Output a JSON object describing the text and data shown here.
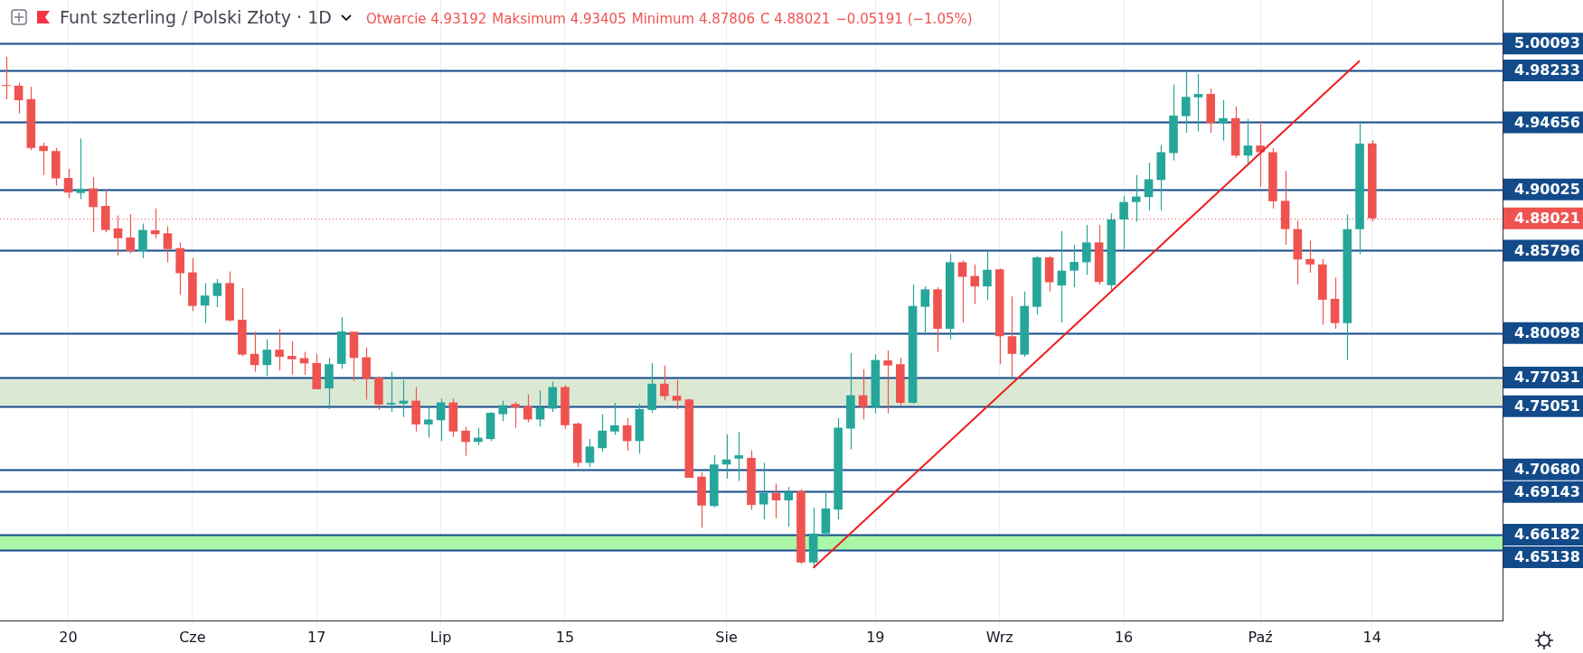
{
  "chart_data": {
    "type": "candlestick",
    "title": "Funt szterling / Polski Złoty · 1D",
    "annotations": [
      "Otwarcie 4.93192",
      "Maksimum 4.93405",
      "Minimum 4.87806",
      "C 4.88021",
      "−0.05191 (−1.05%)"
    ],
    "categories": [
      null,
      null,
      null,
      null,
      null,
      "20",
      null,
      null,
      null,
      null,
      null,
      null,
      null,
      null,
      null,
      "Cze",
      null,
      null,
      null,
      null,
      null,
      null,
      null,
      null,
      null,
      "17",
      null,
      null,
      null,
      null,
      null,
      null,
      null,
      null,
      null,
      "Lip",
      null,
      null,
      null,
      null,
      null,
      null,
      null,
      null,
      null,
      "15",
      null,
      null,
      null,
      null,
      null,
      null,
      null,
      null,
      null,
      null,
      null,
      null,
      "Sie",
      null,
      null,
      null,
      null,
      null,
      null,
      null,
      null,
      null,
      null,
      null,
      "19",
      null,
      null,
      null,
      null,
      null,
      null,
      null,
      null,
      null,
      "Wrz",
      null,
      null,
      null,
      null,
      null,
      null,
      null,
      null,
      null,
      "16",
      null,
      null,
      null,
      null,
      null,
      null,
      null,
      null,
      null,
      null,
      "Paź",
      null,
      null,
      null,
      null,
      null,
      null,
      null,
      null,
      "14",
      null,
      null,
      null,
      null,
      null,
      null,
      null,
      null,
      null,
      null
    ],
    "ylim": [
      4.602,
      5.031
    ],
    "series": [
      {
        "type": "candlestick",
        "ohlc": [
          [
            4.9722,
            4.9919,
            4.9624,
            4.9716
          ],
          [
            4.9718,
            4.9738,
            4.9526,
            4.9618
          ],
          [
            4.9626,
            4.971,
            4.9273,
            4.9288
          ],
          [
            4.9302,
            4.9325,
            4.9101,
            4.9267
          ],
          [
            4.9267,
            4.9288,
            4.9029,
            4.9078
          ],
          [
            4.9081,
            4.9144,
            4.8943,
            4.898
          ],
          [
            4.8977,
            4.9354,
            4.8935,
            4.9006
          ],
          [
            4.9009,
            4.9087,
            4.8705,
            4.888
          ],
          [
            4.8888,
            4.8998,
            4.8705,
            4.8722
          ],
          [
            4.8733,
            4.8822,
            4.8544,
            4.8665
          ],
          [
            4.867,
            4.8831,
            4.8561,
            4.8576
          ],
          [
            4.8576,
            4.8766,
            4.8527,
            4.8722
          ],
          [
            4.8719,
            4.8871,
            4.8665,
            4.8693
          ],
          [
            4.8699,
            4.8748,
            4.8499,
            4.859
          ],
          [
            4.8596,
            4.8636,
            4.8274,
            4.8423
          ],
          [
            4.8429,
            4.8527,
            4.8162,
            4.8197
          ],
          [
            4.82,
            4.8355,
            4.8079,
            4.8269
          ],
          [
            4.8266,
            4.8383,
            4.8189,
            4.8355
          ],
          [
            4.8355,
            4.8435,
            4.8091,
            4.8097
          ],
          [
            4.8102,
            4.832,
            4.7849,
            4.7861
          ],
          [
            4.7866,
            4.8019,
            4.7743,
            4.7789
          ],
          [
            4.7789,
            4.7967,
            4.7715,
            4.7895
          ],
          [
            4.7895,
            4.8039,
            4.7752,
            4.7846
          ],
          [
            4.7852,
            4.7953,
            4.7723,
            4.7829
          ],
          [
            4.7837,
            4.7881,
            4.7723,
            4.78
          ],
          [
            4.7803,
            4.7866,
            4.7622,
            4.7622
          ],
          [
            4.7628,
            4.7838,
            4.7485,
            4.7795
          ],
          [
            4.7797,
            4.8119,
            4.7763,
            4.8021
          ],
          [
            4.8019,
            4.8019,
            4.768,
            4.7838
          ],
          [
            4.7843,
            4.791,
            4.7551,
            4.7694
          ],
          [
            4.7703,
            4.7709,
            4.7479,
            4.7517
          ],
          [
            4.7517,
            4.7743,
            4.7465,
            4.7528
          ],
          [
            4.7523,
            4.7686,
            4.743,
            4.7543
          ],
          [
            4.7543,
            4.7637,
            4.733,
            4.7379
          ],
          [
            4.7379,
            4.7505,
            4.7287,
            4.7413
          ],
          [
            4.7408,
            4.7557,
            4.7264,
            4.7531
          ],
          [
            4.7531,
            4.7557,
            4.7293,
            4.733
          ],
          [
            4.7336,
            4.7364,
            4.7163,
            4.7258
          ],
          [
            4.7258,
            4.7356,
            4.7235,
            4.7287
          ],
          [
            4.7278,
            4.7465,
            4.7264,
            4.7459
          ],
          [
            4.745,
            4.7543,
            4.7402,
            4.7511
          ],
          [
            4.752,
            4.7534,
            4.7356,
            4.7497
          ],
          [
            4.7505,
            4.7586,
            4.7393,
            4.7413
          ],
          [
            4.7413,
            4.7614,
            4.7364,
            4.7497
          ],
          [
            4.7488,
            4.7674,
            4.7465,
            4.7637
          ],
          [
            4.7637,
            4.7651,
            4.735,
            4.7373
          ],
          [
            4.7385,
            4.7393,
            4.7085,
            4.7114
          ],
          [
            4.7114,
            4.7278,
            4.7085,
            4.7226
          ],
          [
            4.7215,
            4.745,
            4.7192,
            4.7336
          ],
          [
            4.733,
            4.7528,
            4.7307,
            4.7373
          ],
          [
            4.7373,
            4.7422,
            4.7198,
            4.7264
          ],
          [
            4.7264,
            4.7523,
            4.7177,
            4.7485
          ],
          [
            4.7479,
            4.7803,
            4.7459,
            4.766
          ],
          [
            4.766,
            4.7786,
            4.7545,
            4.7574
          ],
          [
            4.7577,
            4.7686,
            4.7485,
            4.7543
          ],
          [
            4.7551,
            4.7557,
            4.7011,
            4.7011
          ],
          [
            4.7019,
            4.7048,
            4.6666,
            4.6818
          ],
          [
            4.6815,
            4.7166,
            4.6806,
            4.7103
          ],
          [
            4.7103,
            4.731,
            4.7005,
            4.7137
          ],
          [
            4.7143,
            4.7327,
            4.6988,
            4.7166
          ],
          [
            4.7148,
            4.7201,
            4.6789,
            4.6824
          ],
          [
            4.6827,
            4.7114,
            4.6723,
            4.6904
          ],
          [
            4.6904,
            4.697,
            4.6732,
            4.6855
          ],
          [
            4.6855,
            4.6947,
            4.6674,
            4.6913
          ],
          [
            4.6919,
            4.6933,
            4.6416,
            4.6425
          ],
          [
            4.6425,
            4.6804,
            4.6388,
            4.6626
          ],
          [
            4.6626,
            4.6924,
            4.6603,
            4.6798
          ],
          [
            4.679,
            4.7422,
            4.6723,
            4.7356
          ],
          [
            4.735,
            4.7873,
            4.7206,
            4.758
          ],
          [
            4.758,
            4.7761,
            4.7413,
            4.7499
          ],
          [
            4.7499,
            4.7862,
            4.7456,
            4.7824
          ],
          [
            4.7821,
            4.789,
            4.7456,
            4.7786
          ],
          [
            4.7795,
            4.7838,
            4.7508,
            4.7528
          ],
          [
            4.7528,
            4.8346,
            4.7522,
            4.8197
          ],
          [
            4.8191,
            4.8332,
            4.7996,
            4.8312
          ],
          [
            4.8312,
            4.8326,
            4.7881,
            4.8039
          ],
          [
            4.8039,
            4.8556,
            4.7967,
            4.8499
          ],
          [
            4.8499,
            4.8513,
            4.8082,
            4.8398
          ],
          [
            4.8404,
            4.8484,
            4.8211,
            4.8332
          ],
          [
            4.8332,
            4.8576,
            4.824,
            4.8447
          ],
          [
            4.845,
            4.8456,
            4.7795,
            4.7988
          ],
          [
            4.7988,
            4.8263,
            4.7709,
            4.7866
          ],
          [
            4.7861,
            4.8297,
            4.7846,
            4.8197
          ],
          [
            4.8191,
            4.8542,
            4.8139,
            4.8533
          ],
          [
            4.8533,
            4.8542,
            4.8297,
            4.8361
          ],
          [
            4.8338,
            4.8714,
            4.8082,
            4.8441
          ],
          [
            4.8441,
            4.8619,
            4.8326,
            4.8501
          ],
          [
            4.8499,
            4.8757,
            4.8412,
            4.8636
          ],
          [
            4.8636,
            4.8757,
            4.8343,
            4.8363
          ],
          [
            4.8341,
            4.8837,
            4.8303,
            4.8794
          ],
          [
            4.8794,
            4.8958,
            4.859,
            4.8915
          ],
          [
            4.8915,
            4.9101,
            4.878,
            4.8953
          ],
          [
            4.8949,
            4.9187,
            4.8857,
            4.9072
          ],
          [
            4.9067,
            4.9308,
            4.8857,
            4.9259
          ],
          [
            4.9253,
            4.9727,
            4.9202,
            4.9512
          ],
          [
            4.9508,
            4.9813,
            4.9394,
            4.9641
          ],
          [
            4.9638,
            4.9799,
            4.9402,
            4.9661
          ],
          [
            4.9661,
            4.9698,
            4.9394,
            4.946
          ],
          [
            4.946,
            4.9618,
            4.9339,
            4.9494
          ],
          [
            4.9494,
            4.9575,
            4.9222,
            4.9236
          ],
          [
            4.9236,
            4.9489,
            4.9179,
            4.9305
          ],
          [
            4.9305,
            4.9474,
            4.9021,
            4.9259
          ],
          [
            4.9259,
            4.9288,
            4.8871,
            4.892
          ],
          [
            4.8923,
            4.913,
            4.8619,
            4.8728
          ],
          [
            4.8728,
            4.8786,
            4.8346,
            4.8518
          ],
          [
            4.8521,
            4.8647,
            4.8427,
            4.8484
          ],
          [
            4.8484,
            4.8521,
            4.8068,
            4.824
          ],
          [
            4.8246,
            4.8392,
            4.8039,
            4.8079
          ],
          [
            4.8079,
            4.8829,
            4.7824,
            4.8728
          ],
          [
            4.8728,
            4.9468,
            4.8556,
            4.9319
          ],
          [
            4.93192,
            4.93405,
            4.87806,
            4.88021
          ],
          null,
          null,
          null,
          null,
          null,
          null,
          null,
          null,
          null,
          null
        ],
        "colors": [
          "#ef5350",
          "#ef5350",
          "#ef5350",
          "#ef5350",
          "#ef5350",
          "#ef5350",
          "#26a69a",
          "#ef5350",
          "#ef5350",
          "#ef5350",
          "#ef5350",
          "#26a69a",
          "#ef5350",
          "#ef5350",
          "#ef5350",
          "#ef5350",
          "#26a69a",
          "#26a69a",
          "#ef5350",
          "#ef5350",
          "#ef5350",
          "#26a69a",
          "#ef5350",
          "#ef5350",
          "#ef5350",
          "#ef5350",
          "#26a69a",
          "#26a69a",
          "#ef5350",
          "#ef5350",
          "#ef5350",
          "#26a69a",
          "#26a69a",
          "#ef5350",
          "#26a69a",
          "#26a69a",
          "#ef5350",
          "#ef5350",
          "#26a69a",
          "#26a69a",
          "#26a69a",
          "#ef5350",
          "#ef5350",
          "#26a69a",
          "#26a69a",
          "#ef5350",
          "#ef5350",
          "#26a69a",
          "#26a69a",
          "#26a69a",
          "#ef5350",
          "#26a69a",
          "#26a69a",
          "#ef5350",
          "#ef5350",
          "#ef5350",
          "#ef5350",
          "#26a69a",
          "#26a69a",
          "#26a69a",
          "#ef5350",
          "#26a69a",
          "#ef5350",
          "#26a69a",
          "#ef5350",
          "#26a69a",
          "#26a69a",
          "#26a69a",
          "#26a69a",
          "#ef5350",
          "#26a69a",
          "#ef5350",
          "#ef5350",
          "#26a69a",
          "#26a69a",
          "#ef5350",
          "#26a69a",
          "#ef5350",
          "#ef5350",
          "#26a69a",
          "#ef5350",
          "#ef5350",
          "#26a69a",
          "#26a69a",
          "#ef5350",
          "#26a69a",
          "#26a69a",
          "#26a69a",
          "#ef5350",
          "#26a69a",
          "#26a69a",
          "#26a69a",
          "#26a69a",
          "#26a69a",
          "#26a69a",
          "#26a69a",
          "#26a69a",
          "#ef5350",
          "#26a69a",
          "#ef5350",
          "#26a69a",
          "#ef5350",
          "#ef5350",
          "#ef5350",
          "#ef5350",
          "#ef5350",
          "#ef5350",
          "#ef5350",
          "#26a69a",
          "#26a69a",
          "#ef5350",
          null,
          null,
          null,
          null,
          null,
          null,
          null,
          null,
          null,
          null
        ]
      },
      {
        "type": "line",
        "values": [
          null,
          null,
          null,
          null,
          null,
          null,
          null,
          null,
          null,
          null,
          null,
          null,
          null,
          null,
          null,
          null,
          null,
          null,
          null,
          null,
          null,
          null,
          null,
          null,
          null,
          null,
          null,
          null,
          null,
          null,
          null,
          null,
          null,
          null,
          null,
          null,
          null,
          null,
          null,
          null,
          null,
          null,
          null,
          null,
          null,
          null,
          null,
          null,
          null,
          null,
          null,
          null,
          null,
          null,
          null,
          null,
          null,
          null,
          null,
          null,
          null,
          null,
          null,
          null,
          null,
          4.6388,
          null,
          null,
          null,
          null,
          null,
          null,
          null,
          null,
          null,
          null,
          null,
          null,
          null,
          null,
          null,
          null,
          null,
          null,
          null,
          null,
          null,
          null,
          null,
          null,
          null,
          null,
          null,
          null,
          null,
          null,
          null,
          null,
          null,
          null,
          null,
          null,
          null,
          null,
          null,
          null,
          null,
          null,
          null,
          4.989,
          null,
          null,
          null,
          null,
          null,
          null,
          null,
          null,
          null,
          null,
          null
        ],
        "color": "#f01c1c"
      }
    ],
    "ref_lines": [
      {
        "axis": "y",
        "value": 5.00093,
        "label": "5.00093",
        "color": "#134b8a"
      },
      {
        "axis": "y",
        "value": 4.98233,
        "label": "4.98233",
        "color": "#134b8a"
      },
      {
        "axis": "y",
        "value": 4.94656,
        "label": "4.94656",
        "color": "#134b8a"
      },
      {
        "axis": "y",
        "value": 4.90025,
        "label": "4.90025",
        "color": "#134b8a"
      },
      {
        "axis": "y",
        "value": 4.88021,
        "label": "4.88021",
        "color": "#ef5350",
        "line_style": "dotted"
      },
      {
        "axis": "y",
        "value": 4.85796,
        "label": "4.85796",
        "color": "#134b8a"
      },
      {
        "axis": "y",
        "value": 4.80098,
        "label": "4.80098",
        "color": "#134b8a"
      },
      {
        "axis": "y",
        "value": 4.77031,
        "label": "4.77031",
        "color": "#134b8a"
      },
      {
        "axis": "y",
        "value": 4.75051,
        "label": "4.75051",
        "color": "#134b8a"
      },
      {
        "axis": "y",
        "value": 4.7068,
        "label": "4.70680",
        "color": "#134b8a"
      },
      {
        "axis": "y",
        "value": 4.69143,
        "label": "4.69143",
        "color": "#134b8a"
      },
      {
        "axis": "y",
        "value": 4.66182,
        "label": "4.66182",
        "color": "#134b8a"
      },
      {
        "axis": "y",
        "value": 4.65138,
        "label": "4.65138",
        "color": "#134b8a"
      }
    ],
    "bands": [
      {
        "axis": "y",
        "from": 4.75051,
        "to": 4.77031,
        "color": "#dbe9d4"
      },
      {
        "axis": "y",
        "from": 4.65138,
        "to": 4.66182,
        "color": "#aaf7a8"
      }
    ],
    "grid": "x",
    "legend": false
  }
}
